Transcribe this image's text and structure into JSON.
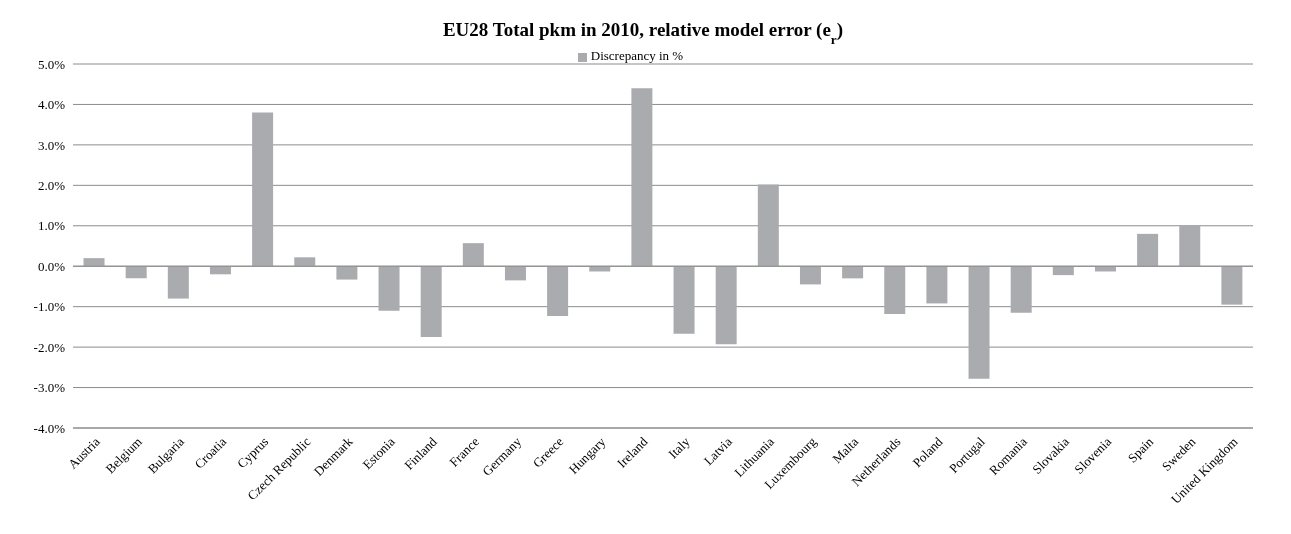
{
  "chart_data": {
    "type": "bar",
    "title": "EU28 Total pkm in 2010, relative model error (e$_{r}$)",
    "categories": [
      "Austria",
      "Belgium",
      "Bulgaria",
      "Croatia",
      "Cyprus",
      "Czech Republic",
      "Denmark",
      "Estonia",
      "Finland",
      "France",
      "Germany",
      "Greece",
      "Hungary",
      "Ireland",
      "Italy",
      "Latvia",
      "Lithuania",
      "Luxembourg",
      "Malta",
      "Netherlands",
      "Poland",
      "Portugal",
      "Romania",
      "Slovakia",
      "Slovenia",
      "Spain",
      "Sweden",
      "United Kingdom"
    ],
    "series": [
      {
        "name": "Discrepancy in %",
        "color": "#a9abae",
        "values": [
          0.2,
          -0.3,
          -0.8,
          -0.2,
          3.8,
          0.22,
          -0.33,
          -1.1,
          -1.75,
          0.57,
          -0.35,
          -1.23,
          -0.13,
          4.4,
          -1.67,
          -1.93,
          2.02,
          -0.45,
          -0.3,
          -1.18,
          -0.92,
          -2.78,
          -1.15,
          -0.22,
          -0.13,
          0.8,
          1.0,
          -0.95
        ]
      }
    ],
    "ylim": [
      -4,
      5
    ],
    "yticks": [
      {
        "value": -4,
        "label": "-4.0%"
      },
      {
        "value": -3,
        "label": "-3.0%"
      },
      {
        "value": -2,
        "label": "-2.0%"
      },
      {
        "value": -1,
        "label": "-1.0%"
      },
      {
        "value": 0,
        "label": "0.0%"
      },
      {
        "value": 1,
        "label": "1.0%"
      },
      {
        "value": 2,
        "label": "2.0%"
      },
      {
        "value": 3,
        "label": "3.0%"
      },
      {
        "value": 4,
        "label": "4.0%"
      },
      {
        "value": 5,
        "label": "5.0%"
      }
    ],
    "grid": "y",
    "legend": "top"
  }
}
